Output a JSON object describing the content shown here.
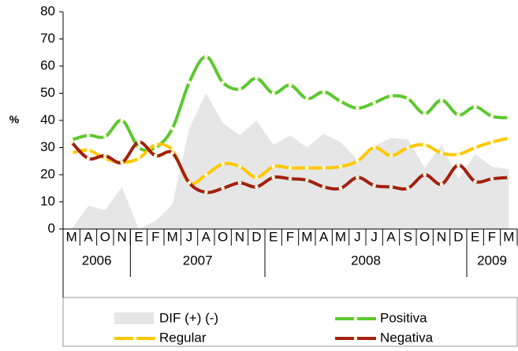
{
  "chart_data": {
    "type": "line",
    "ylabel": "%",
    "categories": [
      "M",
      "A",
      "O",
      "N",
      "E",
      "F",
      "M",
      "J",
      "A",
      "O",
      "N",
      "D",
      "E",
      "F",
      "M",
      "A",
      "M",
      "J",
      "J",
      "A",
      "S",
      "O",
      "N",
      "D",
      "E",
      "F",
      "M"
    ],
    "year_groups": [
      {
        "label": "2006",
        "count": 4
      },
      {
        "label": "2007",
        "count": 8
      },
      {
        "label": "2008",
        "count": 12
      },
      {
        "label": "2009",
        "count": 3
      }
    ],
    "ylim": [
      0,
      80
    ],
    "yticks": [
      0,
      10,
      20,
      30,
      40,
      50,
      60,
      70,
      80
    ],
    "series": [
      {
        "name": "DIF (+) (-)",
        "type": "area",
        "color": "#e6e6e6",
        "values": [
          0,
          8.5,
          7,
          15.5,
          0,
          3,
          9,
          37,
          50,
          39,
          34.5,
          40,
          31,
          34.5,
          30,
          35,
          32,
          25.5,
          30.5,
          33.5,
          33,
          22.5,
          31,
          18.5,
          27.5,
          23,
          22
        ]
      },
      {
        "name": "Positiva",
        "type": "line",
        "color": "#5cc82e",
        "values": [
          32.8,
          34.5,
          34,
          40,
          30,
          30,
          37,
          54,
          63.5,
          54,
          51.5,
          55.5,
          50,
          53,
          48,
          50.5,
          47,
          44.5,
          46.5,
          49,
          48,
          42.5,
          47.5,
          42,
          45,
          41.5,
          41
        ]
      },
      {
        "name": "Regular",
        "type": "line",
        "color": "#ffc800",
        "values": [
          28,
          29,
          26,
          24.5,
          26,
          31,
          29,
          17,
          20,
          24,
          23,
          19,
          23,
          22.5,
          22.5,
          22.5,
          23,
          25,
          30,
          27,
          30,
          31,
          28,
          27.5,
          30,
          32,
          33.5
        ]
      },
      {
        "name": "Negativa",
        "type": "line",
        "color": "#a3200f",
        "values": [
          32,
          26,
          27,
          24.5,
          32,
          27,
          28,
          17,
          13.5,
          15,
          17,
          15.5,
          19,
          18.5,
          18,
          15.5,
          15,
          19,
          16,
          15.5,
          15,
          20,
          16.5,
          23.5,
          17.5,
          18.5,
          19
        ]
      }
    ]
  }
}
